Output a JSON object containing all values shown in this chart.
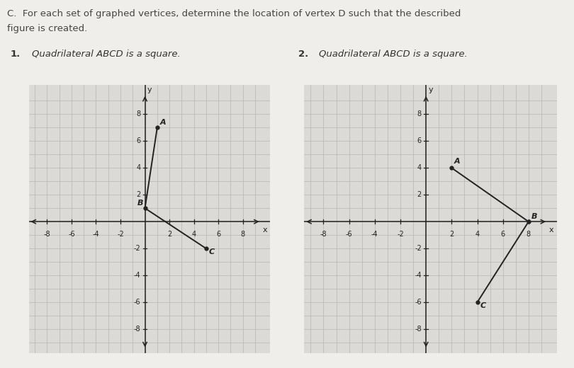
{
  "title_line1": "C.  For each set of graphed vertices, determine the location of vertex D such that the described",
  "title_line2": "figure is created.",
  "label1": "1.",
  "label2": "2.",
  "subtitle": "Quadrilateral ABCD is a square.",
  "graph1": {
    "points": {
      "A": [
        1,
        7
      ],
      "B": [
        0,
        1
      ],
      "C": [
        5,
        -2
      ]
    },
    "point_label_offsets": {
      "A": [
        0.25,
        0.1
      ],
      "B": [
        -0.6,
        0.1
      ],
      "C": [
        0.2,
        -0.5
      ]
    },
    "segments": [
      [
        "A",
        "B"
      ],
      [
        "B",
        "C"
      ]
    ],
    "xlim": [
      -9,
      9
    ],
    "ylim": [
      -9,
      9
    ],
    "xticks": [
      -8,
      -6,
      -4,
      -2,
      2,
      4,
      6,
      8
    ],
    "yticks": [
      -8,
      -6,
      -4,
      -2,
      2,
      4,
      6,
      8
    ],
    "xlabel": "x",
    "ylabel": "y"
  },
  "graph2": {
    "points": {
      "A": [
        2,
        4
      ],
      "B": [
        8,
        0
      ],
      "C": [
        4,
        -6
      ]
    },
    "point_label_offsets": {
      "A": [
        0.2,
        0.2
      ],
      "B": [
        0.2,
        0.1
      ],
      "C": [
        0.2,
        -0.5
      ]
    },
    "segments": [
      [
        "A",
        "B"
      ],
      [
        "B",
        "C"
      ]
    ],
    "xlim": [
      -9,
      9
    ],
    "ylim": [
      -9,
      9
    ],
    "xticks": [
      -8,
      -6,
      -4,
      -2,
      2,
      4,
      6,
      8
    ],
    "yticks": [
      -8,
      -6,
      -4,
      -2,
      2,
      4,
      6,
      8
    ],
    "xlabel": "x",
    "ylabel": "y"
  },
  "page_bg": "#f0eeeb",
  "graph_bg": "#dcdad7",
  "grid_color": "#b8b6b2",
  "axis_color": "#222222",
  "point_color": "#222222",
  "line_color": "#222222",
  "title_color": "#444444",
  "label_color": "#333333",
  "font_size_title": 9.5,
  "font_size_sublabel": 9.5,
  "font_size_tick": 7,
  "font_size_point_label": 8
}
